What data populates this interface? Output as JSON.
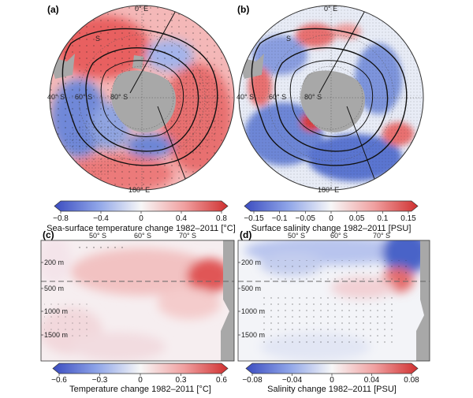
{
  "figure": {
    "panel_letters": [
      "(a)",
      "(b)",
      "(c)",
      "(d)"
    ]
  },
  "colors": {
    "negative": "#3b4cc0",
    "neutral": "#f7f7f7",
    "positive": "#d03030",
    "land": "#a8a8a8",
    "front": "#111111"
  },
  "chart_data": [
    {
      "type": "heatmap",
      "projection": "south-polar-stereographic",
      "panel": "(a)",
      "colorbar": {
        "title": "Sea-surface temperature change 1982–2011 [°C]",
        "ticks": [
          "−0.8",
          "−0.4",
          "0",
          "0.4",
          "0.8"
        ],
        "range": [
          -0.8,
          0.8
        ]
      },
      "map_labels": {
        "lon_top": "0° E",
        "lon_bottom": "180° E",
        "lat_40": "40° S",
        "lat_60": "60° S",
        "lat_80": "80° S",
        "front_label": "S"
      },
      "pattern": [
        {
          "region": "outer ring (40–50° S)",
          "value": 0.6
        },
        {
          "region": "Atlantic / Indian sector",
          "value": 0.4
        },
        {
          "region": "Pacific sector (west of Drake Passage)",
          "value": -0.5
        },
        {
          "region": "Antarctic margin",
          "value": -0.3
        }
      ]
    },
    {
      "type": "heatmap",
      "projection": "south-polar-stereographic",
      "panel": "(b)",
      "colorbar": {
        "title": "Surface salinity change 1982–2011 [PSU]",
        "ticks": [
          "−0.15",
          "−0.1",
          "−0.05",
          "0",
          "0.05",
          "0.1",
          "0.15"
        ],
        "range": [
          -0.15,
          0.15
        ]
      },
      "map_labels": {
        "lon_top": "0° E",
        "lon_bottom": "180° E",
        "lat_40": "40° S",
        "lat_60": "60° S",
        "lat_80": "80° S",
        "front_label": "S"
      },
      "pattern": [
        {
          "region": "Ross / Amundsen sector",
          "value": -0.12
        },
        {
          "region": "Atlantic sector",
          "value": -0.08
        },
        {
          "region": "Indian sector patches",
          "value": 0.1
        }
      ]
    },
    {
      "type": "heatmap",
      "panel": "(c)",
      "x_ticks": [
        "50° S",
        "60° S",
        "70° S"
      ],
      "y_ticks": [
        "200 m",
        "500 m",
        "1000 m",
        "1500 m"
      ],
      "colorbar": {
        "title": "Temperature change 1982–2011 [°C]",
        "ticks": [
          "−0.6",
          "−0.3",
          "0",
          "0.3",
          "0.6"
        ],
        "range": [
          -0.6,
          0.6
        ]
      },
      "pattern": [
        {
          "region": "70° S, 300–600 m",
          "value": 0.5
        },
        {
          "region": "55–70° S, 100–500 m",
          "value": 0.2
        },
        {
          "region": "abyss below 1000 m",
          "value": 0.05
        }
      ]
    },
    {
      "type": "heatmap",
      "panel": "(d)",
      "x_ticks": [
        "50° S",
        "60° S",
        "70° S"
      ],
      "y_ticks": [
        "200 m",
        "500 m",
        "1000 m",
        "1500 m"
      ],
      "colorbar": {
        "title": "Salinity change 1982–2011 [PSU]",
        "ticks": [
          "−0.08",
          "−0.04",
          "0",
          "0.04",
          "0.08"
        ],
        "range": [
          -0.08,
          0.08
        ]
      },
      "pattern": [
        {
          "region": "surface 50–70° S",
          "value": -0.05
        },
        {
          "region": "southern edge near surface",
          "value": -0.08
        },
        {
          "region": "70° S, 400–600 m",
          "value": 0.05
        }
      ]
    }
  ]
}
